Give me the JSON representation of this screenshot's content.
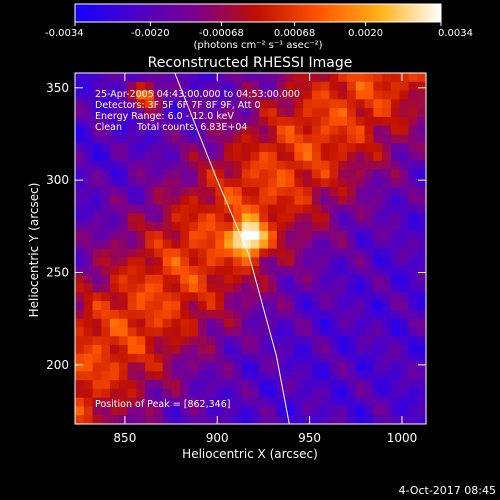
{
  "chart_data": {
    "type": "heatmap",
    "title": "Reconstructed RHESSI Image",
    "xlabel": "Heliocentric X (arcsec)",
    "ylabel": "Heliocentric Y (arcsec)",
    "xlim": [
      823,
      1013
    ],
    "ylim": [
      168,
      358
    ],
    "x_ticks": [
      850,
      900,
      950,
      1000
    ],
    "y_ticks": [
      200,
      250,
      300,
      350
    ],
    "colorbar": {
      "label": "(photons cm⁻² s⁻¹ asec⁻²)",
      "min": -0.0034,
      "max": 0.0034,
      "ticks": [
        "-0.0034",
        "-0.0020",
        "-0.00068",
        "0.00068",
        "0.0020",
        "0.0034"
      ],
      "colors": [
        "#1400ff",
        "#4a00c8",
        "#7c008a",
        "#c01000",
        "#ff5400",
        "#ffb21a",
        "#ffffff"
      ]
    },
    "annotations": [
      "25-Apr-2005 04:43:00.000 to 04:53:00.000",
      "Detectors: 3F 5F 6F 7F 8F 9F, Att 0",
      "Energy Range: 6.0 - 12.0 keV",
      "Clean     Total counts: 6.83E+04"
    ],
    "peak_label": "Position of Peak = [862,346]",
    "peaks": [
      {
        "x": 862,
        "y": 346
      },
      {
        "x": 917,
        "y": 268
      }
    ],
    "limb_curve": [
      {
        "x": 877,
        "y": 358
      },
      {
        "x": 900,
        "y": 300
      },
      {
        "x": 917,
        "y": 260
      },
      {
        "x": 932,
        "y": 205
      },
      {
        "x": 939,
        "y": 168
      }
    ],
    "footer": "4-Oct-2017 08:45"
  }
}
